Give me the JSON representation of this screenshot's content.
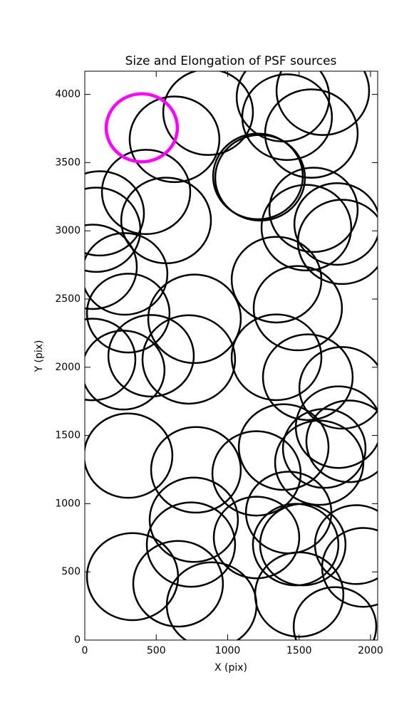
{
  "chart_data": {
    "type": "ellipse",
    "title": "Size and Elongation of PSF sources",
    "x_label": "X (pix)",
    "y_label": "Y (pix)",
    "xlim": [
      0,
      2050
    ],
    "ylim": [
      0,
      4170
    ],
    "xticks": [
      0,
      500,
      1000,
      1500,
      2000
    ],
    "yticks": [
      0,
      500,
      1000,
      1500,
      2000,
      2500,
      3000,
      3500,
      4000
    ],
    "series": [
      {
        "color": "#000000",
        "x": [
          863,
          628,
          1387,
          1416,
          1666,
          1586,
          1212,
          1227,
          429,
          569,
          80,
          105,
          1601,
          1551,
          1766,
          1801,
          55,
          279,
          1342,
          1491,
          304,
          768,
          55,
          269,
          464,
          728,
          1561,
          1342,
          1801,
          1776,
          304,
          778,
          1202,
          1392,
          1641,
          1676,
          1850,
          763,
          1427,
          1476,
          1202,
          743,
          334,
          653,
          888,
          1526,
          1900,
          1950,
          1501,
          1751
        ],
        "values": [
          3870,
          3671,
          3979,
          3833,
          4026,
          3713,
          3399,
          3389,
          3285,
          3076,
          3008,
          3128,
          3154,
          3023,
          3050,
          2919,
          2736,
          2684,
          2642,
          2433,
          2397,
          2355,
          2057,
          1979,
          2084,
          2057,
          1927,
          2073,
          1849,
          1561,
          1352,
          1248,
          1222,
          1415,
          1300,
          1405,
          1457,
          882,
          935,
          700,
          752,
          700,
          465,
          413,
          256,
          700,
          700,
          533,
          334,
          99
        ],
        "r": [
          314,
          314,
          324,
          314,
          324,
          324,
          314,
          314,
          309,
          314,
          309,
          309,
          309,
          314,
          299,
          309,
          309,
          299,
          314,
          309,
          289,
          324,
          299,
          289,
          299,
          324,
          314,
          314,
          299,
          299,
          309,
          314,
          309,
          314,
          309,
          289,
          299,
          309,
          299,
          299,
          299,
          309,
          319,
          314,
          314,
          299,
          289,
          289,
          309,
          289
        ]
      },
      {
        "color": "#ff00ff",
        "x": [
          399
        ],
        "values": [
          3755
        ],
        "r": [
          249
        ]
      }
    ]
  }
}
